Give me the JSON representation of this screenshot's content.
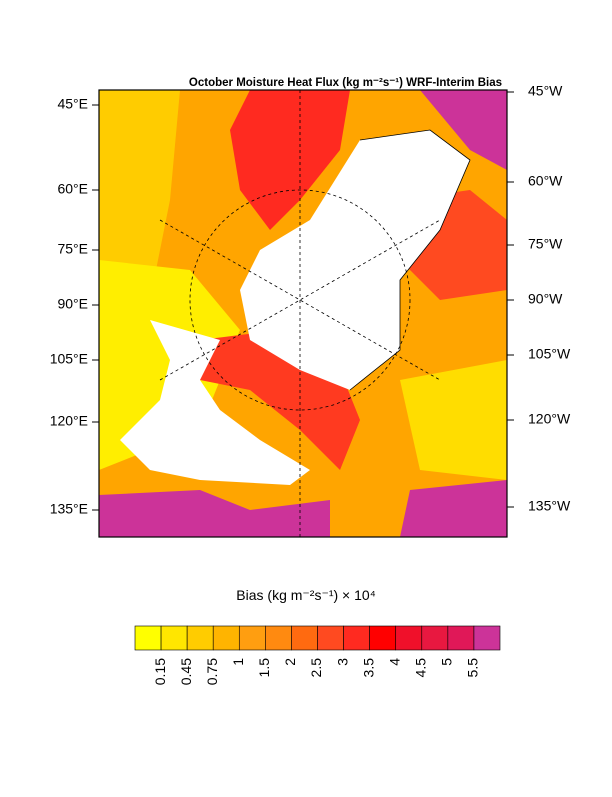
{
  "map": {
    "title": "October Moisture Heat Flux (kg m⁻²s⁻¹) WRF-Interim Bias",
    "left_labels": [
      "45°E",
      "60°E",
      "75°E",
      "90°E",
      "105°E",
      "120°E",
      "135°E"
    ],
    "right_labels": [
      "45°W",
      "60°W",
      "75°W",
      "90°W",
      "105°W",
      "120°W",
      "135°W"
    ],
    "colorbar": {
      "label": "Bias (kg m⁻²s⁻¹) × 10⁴",
      "levels": [
        0.15,
        0.45,
        0.75,
        1,
        1.5,
        2,
        2.5,
        3,
        3.5,
        4,
        4.5,
        5,
        5.5
      ],
      "colors": [
        "#ffff00",
        "#ffe600",
        "#ffcc00",
        "#ffb400",
        "#ff9e10",
        "#ff8a10",
        "#ff6a10",
        "#ff4a20",
        "#ff2a20",
        "#ff0000",
        "#f0102a",
        "#e81840",
        "#e01858",
        "#cc3399"
      ]
    }
  }
}
